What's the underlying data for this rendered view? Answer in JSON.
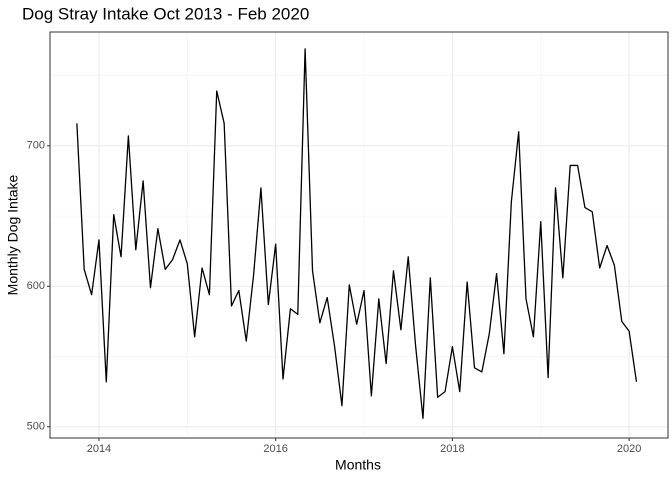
{
  "chart_data": {
    "type": "line",
    "title": "Dog Stray Intake Oct 2013 - Feb 2020",
    "x_label": "Months",
    "y_label": "Monthly Dog Intake",
    "x": [
      2013.75,
      2013.833,
      2013.917,
      2014.0,
      2014.083,
      2014.167,
      2014.25,
      2014.333,
      2014.417,
      2014.5,
      2014.583,
      2014.667,
      2014.75,
      2014.833,
      2014.917,
      2015.0,
      2015.083,
      2015.167,
      2015.25,
      2015.333,
      2015.417,
      2015.5,
      2015.583,
      2015.667,
      2015.75,
      2015.833,
      2015.917,
      2016.0,
      2016.083,
      2016.167,
      2016.25,
      2016.333,
      2016.417,
      2016.5,
      2016.583,
      2016.667,
      2016.75,
      2016.833,
      2016.917,
      2017.0,
      2017.083,
      2017.167,
      2017.25,
      2017.333,
      2017.417,
      2017.5,
      2017.583,
      2017.667,
      2017.75,
      2017.833,
      2017.917,
      2018.0,
      2018.083,
      2018.167,
      2018.25,
      2018.333,
      2018.417,
      2018.5,
      2018.583,
      2018.667,
      2018.75,
      2018.833,
      2018.917,
      2019.0,
      2019.083,
      2019.167,
      2019.25,
      2019.333,
      2019.417,
      2019.5,
      2019.583,
      2019.667,
      2019.75,
      2019.833,
      2019.917,
      2020.0,
      2020.083
    ],
    "series": [
      {
        "name": "Monthly Dog Intake",
        "color": "#000000",
        "values": [
          716,
          612,
          594,
          633,
          532,
          651,
          621,
          707,
          626,
          675,
          599,
          641,
          612,
          619,
          633,
          616,
          564,
          613,
          594,
          739,
          716,
          586,
          597,
          561,
          608,
          670,
          587,
          630,
          534,
          584,
          580,
          769,
          611,
          574,
          592,
          557,
          515,
          601,
          573,
          597,
          522,
          591,
          545,
          611,
          569,
          621,
          558,
          506,
          606,
          521,
          525,
          557,
          525,
          603,
          542,
          539,
          566,
          609,
          552,
          660,
          710,
          591,
          564,
          646,
          535,
          670,
          606,
          686,
          686,
          656,
          653,
          613,
          629,
          615,
          575,
          568,
          532
        ]
      }
    ],
    "xlim": [
      2013.446,
      2020.44
    ],
    "ylim": [
      492,
      781
    ],
    "xticks": [
      2014,
      2016,
      2018,
      2020
    ],
    "yticks": [
      500,
      600,
      700
    ],
    "xminor": [
      2015,
      2017,
      2019
    ],
    "yminor": [
      550,
      650,
      750
    ],
    "grid": true
  }
}
